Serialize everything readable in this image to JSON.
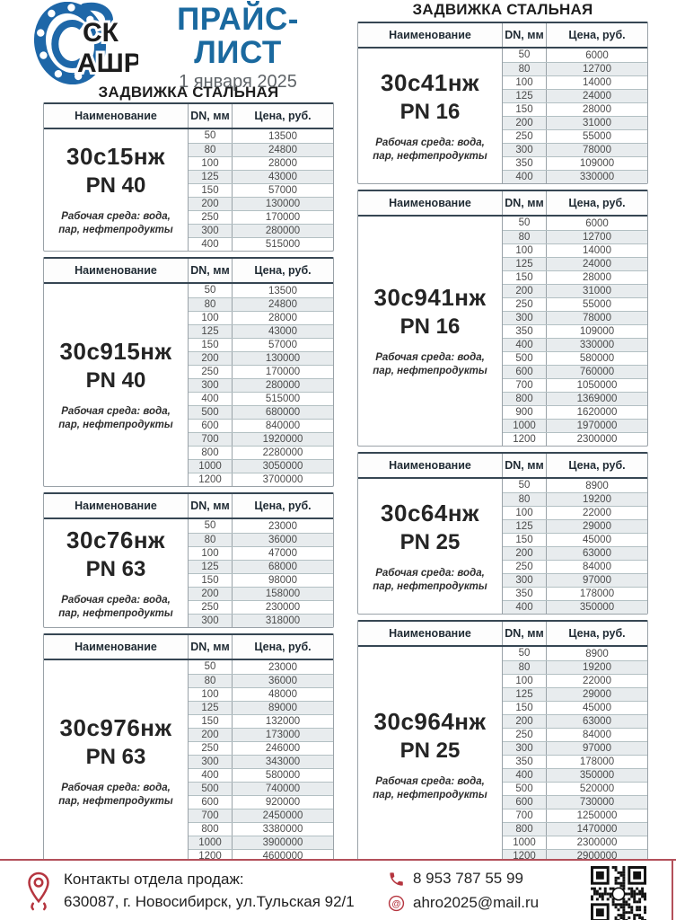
{
  "page": {
    "title": "ПРАЙС-ЛИСТ",
    "date": "1 января 2025",
    "logo_line1": "СК",
    "logo_line2": "АШРО"
  },
  "sections": {
    "left_title": "ЗАДВИЖКА СТАЛЬНАЯ",
    "right_title": "ЗАДВИЖКА СТАЛЬНАЯ"
  },
  "table_headers": {
    "name": "Наименование",
    "dn": "DN, мм",
    "price": "Цена, руб."
  },
  "working_medium": "Рабочая среда: вода, пар, нефтепродукты",
  "tables": {
    "left": [
      {
        "product": "30с15нж",
        "pn": "PN 40",
        "rows": [
          [
            "50",
            "13500"
          ],
          [
            "80",
            "24800"
          ],
          [
            "100",
            "28000"
          ],
          [
            "125",
            "43000"
          ],
          [
            "150",
            "57000"
          ],
          [
            "200",
            "130000"
          ],
          [
            "250",
            "170000"
          ],
          [
            "300",
            "280000"
          ],
          [
            "400",
            "515000"
          ]
        ]
      },
      {
        "product": "30с915нж",
        "pn": "PN 40",
        "rows": [
          [
            "50",
            "13500"
          ],
          [
            "80",
            "24800"
          ],
          [
            "100",
            "28000"
          ],
          [
            "125",
            "43000"
          ],
          [
            "150",
            "57000"
          ],
          [
            "200",
            "130000"
          ],
          [
            "250",
            "170000"
          ],
          [
            "300",
            "280000"
          ],
          [
            "400",
            "515000"
          ],
          [
            "500",
            "680000"
          ],
          [
            "600",
            "840000"
          ],
          [
            "700",
            "1920000"
          ],
          [
            "800",
            "2280000"
          ],
          [
            "1000",
            "3050000"
          ],
          [
            "1200",
            "3700000"
          ]
        ]
      },
      {
        "product": "30с76нж",
        "pn": "PN 63",
        "rows": [
          [
            "50",
            "23000"
          ],
          [
            "80",
            "36000"
          ],
          [
            "100",
            "47000"
          ],
          [
            "125",
            "68000"
          ],
          [
            "150",
            "98000"
          ],
          [
            "200",
            "158000"
          ],
          [
            "250",
            "230000"
          ],
          [
            "300",
            "318000"
          ]
        ]
      },
      {
        "product": "30с976нж",
        "pn": "PN 63",
        "rows": [
          [
            "50",
            "23000"
          ],
          [
            "80",
            "36000"
          ],
          [
            "100",
            "48000"
          ],
          [
            "125",
            "89000"
          ],
          [
            "150",
            "132000"
          ],
          [
            "200",
            "173000"
          ],
          [
            "250",
            "246000"
          ],
          [
            "300",
            "343000"
          ],
          [
            "400",
            "580000"
          ],
          [
            "500",
            "740000"
          ],
          [
            "600",
            "920000"
          ],
          [
            "700",
            "2450000"
          ],
          [
            "800",
            "3380000"
          ],
          [
            "1000",
            "3900000"
          ],
          [
            "1200",
            "4600000"
          ]
        ]
      }
    ],
    "right": [
      {
        "product": "30с41нж",
        "pn": "PN 16",
        "rows": [
          [
            "50",
            "6000"
          ],
          [
            "80",
            "12700"
          ],
          [
            "100",
            "14000"
          ],
          [
            "125",
            "24000"
          ],
          [
            "150",
            "28000"
          ],
          [
            "200",
            "31000"
          ],
          [
            "250",
            "55000"
          ],
          [
            "300",
            "78000"
          ],
          [
            "350",
            "109000"
          ],
          [
            "400",
            "330000"
          ]
        ]
      },
      {
        "product": "30с941нж",
        "pn": "PN 16",
        "rows": [
          [
            "50",
            "6000"
          ],
          [
            "80",
            "12700"
          ],
          [
            "100",
            "14000"
          ],
          [
            "125",
            "24000"
          ],
          [
            "150",
            "28000"
          ],
          [
            "200",
            "31000"
          ],
          [
            "250",
            "55000"
          ],
          [
            "300",
            "78000"
          ],
          [
            "350",
            "109000"
          ],
          [
            "400",
            "330000"
          ],
          [
            "500",
            "580000"
          ],
          [
            "600",
            "760000"
          ],
          [
            "700",
            "1050000"
          ],
          [
            "800",
            "1369000"
          ],
          [
            "900",
            "1620000"
          ],
          [
            "1000",
            "1970000"
          ],
          [
            "1200",
            "2300000"
          ]
        ]
      },
      {
        "product": "30с64нж",
        "pn": "PN 25",
        "rows": [
          [
            "50",
            "8900"
          ],
          [
            "80",
            "19200"
          ],
          [
            "100",
            "22000"
          ],
          [
            "125",
            "29000"
          ],
          [
            "150",
            "45000"
          ],
          [
            "200",
            "63000"
          ],
          [
            "250",
            "84000"
          ],
          [
            "300",
            "97000"
          ],
          [
            "350",
            "178000"
          ],
          [
            "400",
            "350000"
          ]
        ]
      },
      {
        "product": "30с964нж",
        "pn": "PN 25",
        "rows": [
          [
            "50",
            "8900"
          ],
          [
            "80",
            "19200"
          ],
          [
            "100",
            "22000"
          ],
          [
            "125",
            "29000"
          ],
          [
            "150",
            "45000"
          ],
          [
            "200",
            "63000"
          ],
          [
            "250",
            "84000"
          ],
          [
            "300",
            "97000"
          ],
          [
            "350",
            "178000"
          ],
          [
            "400",
            "350000"
          ],
          [
            "500",
            "520000"
          ],
          [
            "600",
            "730000"
          ],
          [
            "700",
            "1250000"
          ],
          [
            "800",
            "1470000"
          ],
          [
            "1000",
            "2300000"
          ],
          [
            "1200",
            "2900000"
          ]
        ]
      }
    ]
  },
  "footer": {
    "contacts_label": "Контакты отдела продаж:",
    "address": "630087, г. Новосибирск, ул.Тульская 92/1",
    "phone": "8 953 787 55 99",
    "email": "ahro2025@mail.ru"
  },
  "colors": {
    "accent_blue": "#1a699f",
    "accent_red": "#b5353f",
    "table_header_border": "#364653",
    "alt_row": "#e8ecee"
  }
}
